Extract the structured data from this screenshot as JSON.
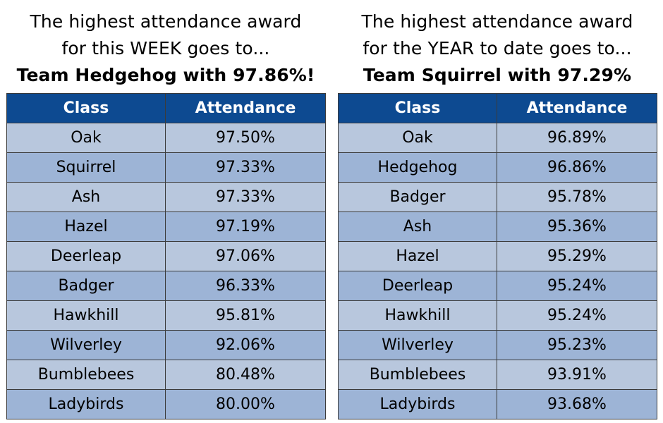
{
  "week": {
    "line1": "The highest attendance award",
    "line2": "for this WEEK goes to...",
    "winner": "Team Hedgehog with 97.86%!",
    "headers": [
      "Class",
      "Attendance"
    ],
    "rows": [
      {
        "class": "Oak",
        "attendance": "97.50%"
      },
      {
        "class": "Squirrel",
        "attendance": "97.33%"
      },
      {
        "class": "Ash",
        "attendance": "97.33%"
      },
      {
        "class": "Hazel",
        "attendance": "97.19%"
      },
      {
        "class": "Deerleap",
        "attendance": "97.06%"
      },
      {
        "class": "Badger",
        "attendance": "96.33%"
      },
      {
        "class": "Hawkhill",
        "attendance": "95.81%"
      },
      {
        "class": "Wilverley",
        "attendance": "92.06%"
      },
      {
        "class": "Bumblebees",
        "attendance": "80.48%"
      },
      {
        "class": "Ladybirds",
        "attendance": "80.00%"
      }
    ]
  },
  "year": {
    "line1": "The highest attendance award",
    "line2": "for the YEAR to date goes to...",
    "winner": "Team Squirrel with 97.29%",
    "headers": [
      "Class",
      "Attendance"
    ],
    "rows": [
      {
        "class": "Oak",
        "attendance": "96.89%"
      },
      {
        "class": "Hedgehog",
        "attendance": "96.86%"
      },
      {
        "class": "Badger",
        "attendance": "95.78%"
      },
      {
        "class": "Ash",
        "attendance": "95.36%"
      },
      {
        "class": "Hazel",
        "attendance": "95.29%"
      },
      {
        "class": "Deerleap",
        "attendance": "95.24%"
      },
      {
        "class": "Hawkhill",
        "attendance": "95.24%"
      },
      {
        "class": "Wilverley",
        "attendance": "95.23%"
      },
      {
        "class": "Bumblebees",
        "attendance": "93.91%"
      },
      {
        "class": "Ladybirds",
        "attendance": "93.68%"
      }
    ]
  },
  "colors": {
    "header_bg": "#0d4a91",
    "row_light": "#b8c7dd",
    "row_dark": "#9db4d6"
  }
}
